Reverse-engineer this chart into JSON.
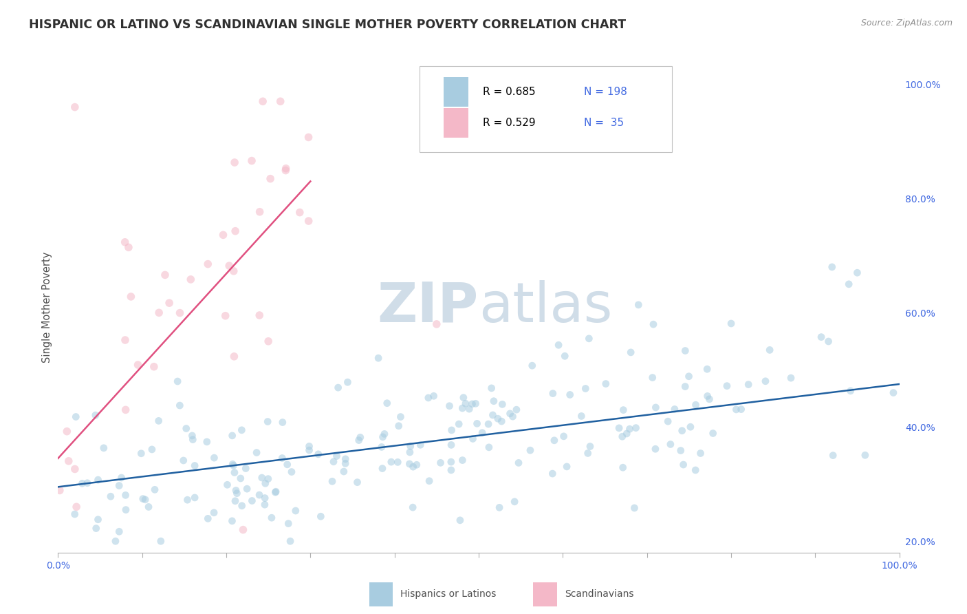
{
  "title": "HISPANIC OR LATINO VS SCANDINAVIAN SINGLE MOTHER POVERTY CORRELATION CHART",
  "source": "Source: ZipAtlas.com",
  "ylabel": "Single Mother Poverty",
  "watermark_zip": "ZIP",
  "watermark_atlas": "atlas",
  "xlim": [
    0.0,
    1.0
  ],
  "ylim_low": 0.18,
  "ylim_high": 1.04,
  "x_ticks": [
    0.0,
    0.1,
    0.2,
    0.3,
    0.4,
    0.5,
    0.6,
    0.7,
    0.8,
    0.9,
    1.0
  ],
  "x_tick_labels": [
    "0.0%",
    "",
    "",
    "",
    "",
    "",
    "",
    "",
    "",
    "",
    "100.0%"
  ],
  "y_ticks": [
    0.2,
    0.4,
    0.6,
    0.8,
    1.0
  ],
  "y_tick_labels": [
    "20.0%",
    "40.0%",
    "60.0%",
    "80.0%",
    "100.0%"
  ],
  "legend_r1": "0.685",
  "legend_n1": "198",
  "legend_r2": "0.529",
  "legend_n2": " 35",
  "color_blue_scatter": "#a8cce0",
  "color_pink_scatter": "#f4b8c8",
  "color_blue_line": "#2060a0",
  "color_pink_line": "#e05080",
  "color_axis_text": "#4169e1",
  "color_title": "#303030",
  "color_source": "#909090",
  "color_ylabel": "#505050",
  "color_legend_label": "#000000",
  "color_legend_N": "#4169e1",
  "color_grid": "#d8d8d8",
  "color_legend_border": "#c0c0c0",
  "color_watermark": "#d0dde8",
  "background": "#ffffff",
  "title_fontsize": 12.5,
  "source_fontsize": 9,
  "tick_fontsize": 10,
  "ylabel_fontsize": 10.5,
  "legend_fontsize": 11,
  "watermark_fontsize_zip": 58,
  "watermark_fontsize_atlas": 58,
  "scatter_size_blue": 60,
  "scatter_size_pink": 70,
  "scatter_alpha": 0.55,
  "line_width": 1.8,
  "hispanic_line_x0": 0.0,
  "hispanic_line_x1": 1.0,
  "hispanic_line_y0": 0.295,
  "hispanic_line_y1": 0.475,
  "scand_line_x0": 0.0,
  "scand_line_x1": 0.3,
  "scand_line_y0": 0.345,
  "scand_line_y1": 0.83
}
